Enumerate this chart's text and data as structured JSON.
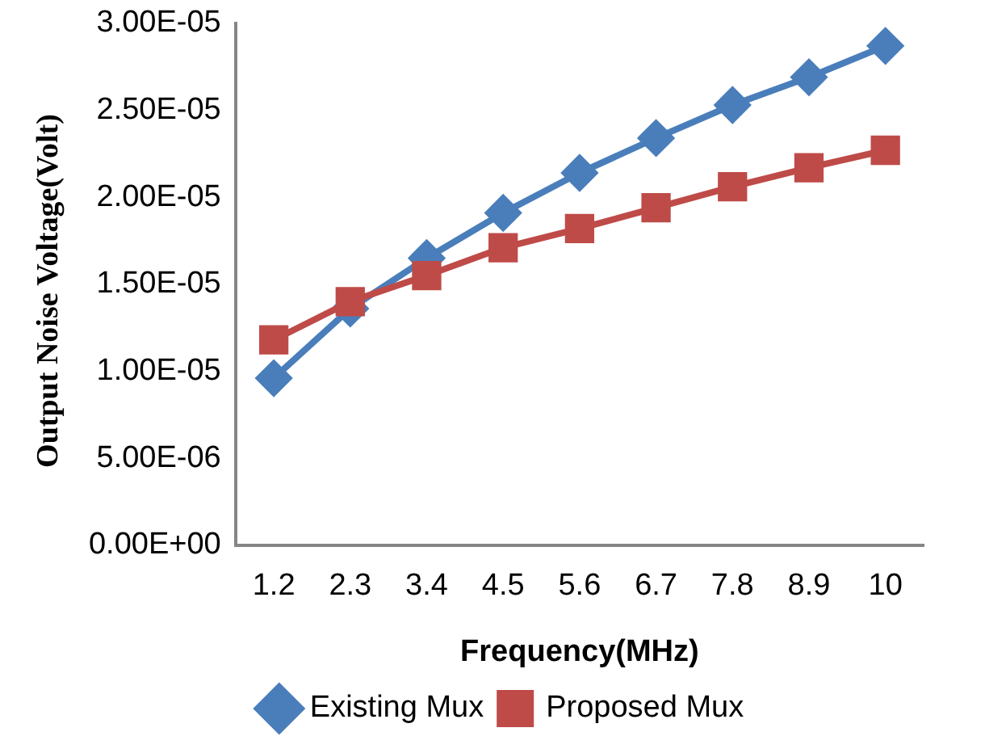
{
  "chart_data": {
    "type": "line",
    "xlabel": "Frequency(MHz)",
    "ylabel": "Output Noise Voltage(Volt)",
    "categories": [
      "1.2",
      "2.3",
      "3.4",
      "4.5",
      "5.6",
      "6.7",
      "7.8",
      "8.9",
      "10"
    ],
    "series": [
      {
        "name": "Existing Mux",
        "color": "#4a7ebb",
        "marker": "diamond",
        "values": [
          9.6e-06,
          1.36e-05,
          1.65e-05,
          1.91e-05,
          2.14e-05,
          2.34e-05,
          2.53e-05,
          2.69e-05,
          2.87e-05
        ]
      },
      {
        "name": "Proposed Mux",
        "color": "#be4b48",
        "marker": "square",
        "values": [
          1.18e-05,
          1.4e-05,
          1.55e-05,
          1.71e-05,
          1.82e-05,
          1.94e-05,
          2.06e-05,
          2.17e-05,
          2.27e-05
        ]
      }
    ],
    "ylim": [
      0,
      3e-05
    ],
    "yticks": [
      {
        "value": 0,
        "label": "0.00E+00"
      },
      {
        "value": 5e-06,
        "label": "5.00E-06"
      },
      {
        "value": 1e-05,
        "label": "1.00E-05"
      },
      {
        "value": 1.5e-05,
        "label": "1.50E-05"
      },
      {
        "value": 2e-05,
        "label": "2.00E-05"
      },
      {
        "value": 2.5e-05,
        "label": "2.50E-05"
      },
      {
        "value": 3e-05,
        "label": "3.00E-05"
      }
    ],
    "grid": false,
    "legend": "bottom",
    "line_style": "solid"
  }
}
